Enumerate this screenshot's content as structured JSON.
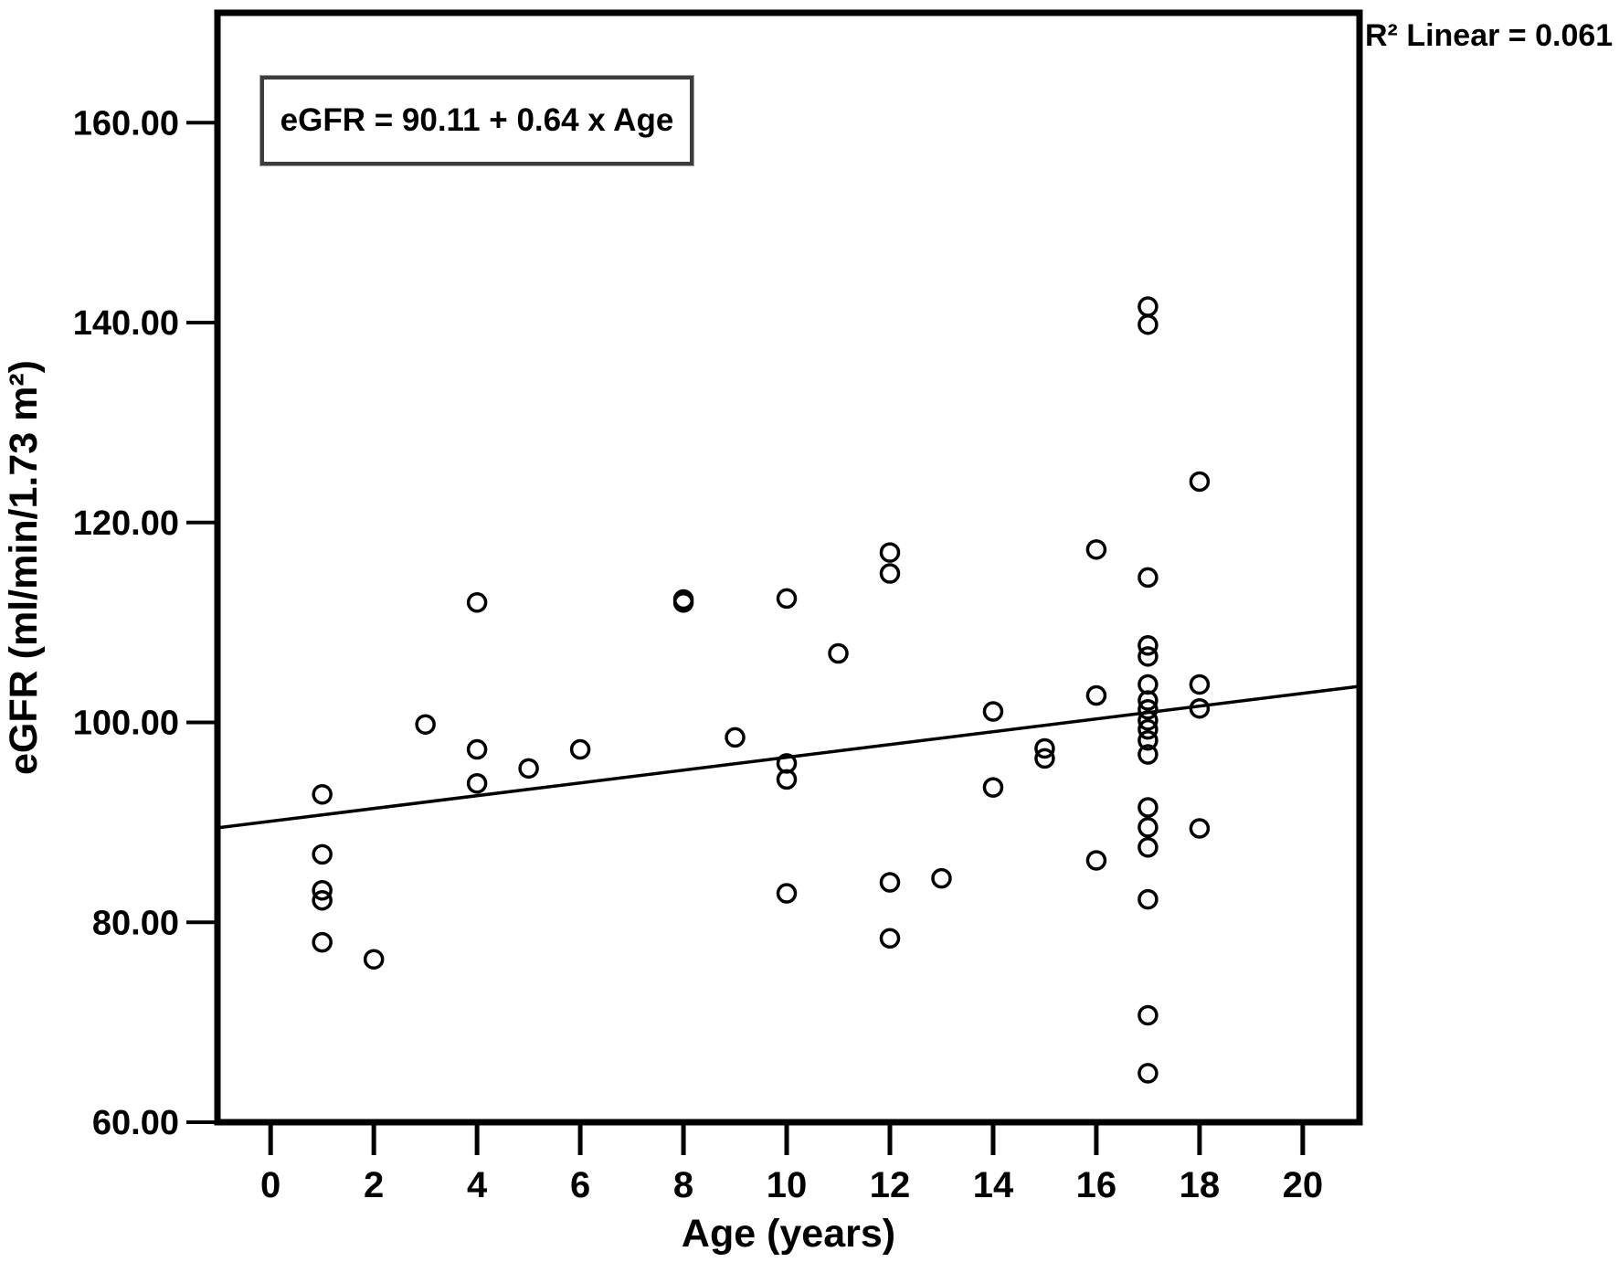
{
  "figure": {
    "equation_label": "eGFR = 90.11 + 0.64 x Age",
    "r2_label": "R² Linear = 0.061"
  },
  "chart_data": {
    "type": "scatter",
    "title": "",
    "xlabel": "Age (years)",
    "ylabel": "eGFR (ml/min/1.73 m²)",
    "xlim": [
      -1.03,
      21.1
    ],
    "ylim": [
      60,
      171
    ],
    "grid": false,
    "legend": "none",
    "x_ticks": [
      0,
      2,
      4,
      6,
      8,
      10,
      12,
      14,
      16,
      18,
      20
    ],
    "x_tick_labels": [
      "0",
      "2",
      "4",
      "6",
      "8",
      "10",
      "12",
      "14",
      "16",
      "18",
      "20"
    ],
    "y_ticks": [
      60,
      80,
      100,
      120,
      140,
      160
    ],
    "y_tick_labels": [
      "60.00",
      "80.00",
      "100.00",
      "120.00",
      "140.00",
      "160.00"
    ],
    "marker": "open-circle",
    "marker_color": "#000000",
    "regression": {
      "intercept": 90.11,
      "slope": 0.64,
      "r_squared": 0.061
    },
    "points": [
      [
        1,
        92.8
      ],
      [
        1,
        86.8
      ],
      [
        1,
        83.2
      ],
      [
        1,
        82.2
      ],
      [
        1,
        78.0
      ],
      [
        2,
        76.3
      ],
      [
        3,
        99.8
      ],
      [
        4,
        112.0
      ],
      [
        4,
        97.3
      ],
      [
        4,
        93.9
      ],
      [
        5,
        95.4
      ],
      [
        6,
        97.3
      ],
      [
        8,
        112.0
      ],
      [
        8,
        112.3
      ],
      [
        9,
        98.5
      ],
      [
        10,
        112.4
      ],
      [
        10,
        95.9
      ],
      [
        10,
        94.3
      ],
      [
        10,
        82.9
      ],
      [
        11,
        106.9
      ],
      [
        12,
        117.0
      ],
      [
        12,
        114.9
      ],
      [
        12,
        84.0
      ],
      [
        12,
        78.4
      ],
      [
        13,
        84.4
      ],
      [
        14,
        101.1
      ],
      [
        14,
        93.5
      ],
      [
        15,
        97.4
      ],
      [
        15,
        96.4
      ],
      [
        16,
        117.3
      ],
      [
        16,
        102.7
      ],
      [
        16,
        86.2
      ],
      [
        17,
        141.6
      ],
      [
        17,
        139.8
      ],
      [
        17,
        114.5
      ],
      [
        17,
        107.7
      ],
      [
        17,
        106.6
      ],
      [
        17,
        103.8
      ],
      [
        17,
        102.2
      ],
      [
        17,
        101.3
      ],
      [
        17,
        100.2
      ],
      [
        17,
        99.3
      ],
      [
        17,
        98.2
      ],
      [
        17,
        96.8
      ],
      [
        17,
        91.5
      ],
      [
        17,
        89.5
      ],
      [
        17,
        87.5
      ],
      [
        17,
        82.3
      ],
      [
        17,
        70.7
      ],
      [
        17,
        64.9
      ],
      [
        18,
        124.1
      ],
      [
        18,
        103.8
      ],
      [
        18,
        101.4
      ],
      [
        18,
        89.4
      ]
    ]
  }
}
